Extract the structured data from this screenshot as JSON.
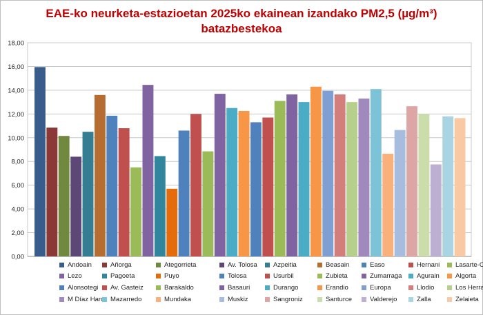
{
  "chart_data": {
    "type": "bar",
    "title_line1": "EAE-ko neurketa-estazioetan 2025ko ekainean izandako PM2,5 (µg/m³)",
    "title_line2": "batazbestekoa",
    "xlabel": "",
    "ylabel": "",
    "ylim": [
      0,
      18
    ],
    "yticks": [
      "0,00",
      "2,00",
      "4,00",
      "6,00",
      "8,00",
      "10,00",
      "12,00",
      "14,00",
      "16,00",
      "18,00"
    ],
    "grid": true,
    "legend_position": "bottom",
    "series": [
      {
        "name": "Andoain",
        "value": 15.95,
        "color": "#385d8a"
      },
      {
        "name": "Añorga",
        "value": 10.85,
        "color": "#8c3836"
      },
      {
        "name": "Ategorrieta",
        "value": 10.15,
        "color": "#71893f"
      },
      {
        "name": "Av. Tolosa",
        "value": 8.4,
        "color": "#5c4776"
      },
      {
        "name": "Azpeitia",
        "value": 10.5,
        "color": "#357d91"
      },
      {
        "name": "Beasain",
        "value": 13.6,
        "color": "#b66d31"
      },
      {
        "name": "Easo",
        "value": 11.85,
        "color": "#4f81bd"
      },
      {
        "name": "Hernani",
        "value": 10.8,
        "color": "#c0504d"
      },
      {
        "name": "Lasarte-Oria",
        "value": 7.5,
        "color": "#9bbb59"
      },
      {
        "name": "Lezo",
        "value": 14.45,
        "color": "#8064a2"
      },
      {
        "name": "Pagoeta",
        "value": 8.45,
        "color": "#31859c"
      },
      {
        "name": "Puyo",
        "value": 5.7,
        "color": "#e46c0a"
      },
      {
        "name": "Tolosa",
        "value": 10.6,
        "color": "#4f81bd"
      },
      {
        "name": "Usurbil",
        "value": 12.0,
        "color": "#c0504d"
      },
      {
        "name": "Zubieta",
        "value": 8.85,
        "color": "#9bbb59"
      },
      {
        "name": "Zumarraga",
        "value": 13.7,
        "color": "#8064a2"
      },
      {
        "name": "Agurain",
        "value": 12.5,
        "color": "#4bacc6"
      },
      {
        "name": "Algorta",
        "value": 12.25,
        "color": "#f79646"
      },
      {
        "name": "Alonsotegi",
        "value": 11.3,
        "color": "#4f81bd"
      },
      {
        "name": "Av. Gasteiz",
        "value": 11.7,
        "color": "#c0504d"
      },
      {
        "name": "Barakaldo",
        "value": 13.1,
        "color": "#9bbb59"
      },
      {
        "name": "Basauri",
        "value": 13.65,
        "color": "#8064a2"
      },
      {
        "name": "Durango",
        "value": 13.0,
        "color": "#4bacc6"
      },
      {
        "name": "Erandio",
        "value": 14.3,
        "color": "#f79646"
      },
      {
        "name": "Europa",
        "value": 13.95,
        "color": "#7f9fd2"
      },
      {
        "name": "Llodio",
        "value": 13.65,
        "color": "#d47e7c"
      },
      {
        "name": "Los Herran",
        "value": 13.0,
        "color": "#b7cf8d"
      },
      {
        "name": "M Díaz Haro",
        "value": 13.3,
        "color": "#9f89bd"
      },
      {
        "name": "Mazarredo",
        "value": 14.1,
        "color": "#7dc3d7"
      },
      {
        "name": "Mundaka",
        "value": 8.65,
        "color": "#fab07b"
      },
      {
        "name": "Muskiz",
        "value": 10.65,
        "color": "#a7bde0"
      },
      {
        "name": "Sangroniz",
        "value": 12.65,
        "color": "#dda5a4"
      },
      {
        "name": "Santurce",
        "value": 12.0,
        "color": "#cbddab"
      },
      {
        "name": "Valderejo",
        "value": 7.75,
        "color": "#bcafd2"
      },
      {
        "name": "Zalla",
        "value": 11.8,
        "color": "#a9d5e2"
      },
      {
        "name": "Zelaieta",
        "value": 11.65,
        "color": "#f9c9a4"
      }
    ]
  }
}
